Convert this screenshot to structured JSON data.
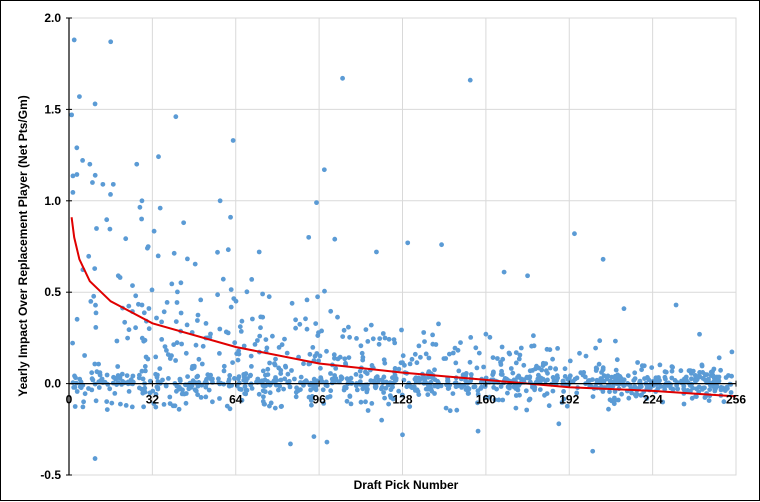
{
  "chart_data": {
    "type": "scatter",
    "title": "",
    "xlabel": "Draft Pick Number",
    "ylabel": "Yearly Impact Over Replacement Player (Net Pts/Gm)",
    "xlim": [
      0,
      256
    ],
    "ylim": [
      -0.5,
      2.0
    ],
    "xticks": [
      "32",
      "64",
      "96",
      "128",
      "160",
      "192",
      "224",
      "256"
    ],
    "xtick_values": [
      32,
      64,
      96,
      128,
      160,
      192,
      224,
      256
    ],
    "xaxis_origin_label": "0",
    "yticks": [
      "-0.5",
      "0.0",
      "0.5",
      "1.0",
      "1.5",
      "2.0"
    ],
    "ytick_values": [
      -0.5,
      0.0,
      0.5,
      1.0,
      1.5,
      2.0
    ],
    "grid": true,
    "legend": "none",
    "colors": {
      "points": "#5b9bd5",
      "trend": "#e00000",
      "grid": "#d9d9d9",
      "axis": "#000000"
    },
    "series": [
      {
        "type": "scatter",
        "points": [
          [
            1,
            1.47
          ],
          [
            2,
            1.88
          ],
          [
            4,
            1.57
          ],
          [
            3,
            1.29
          ],
          [
            8,
            1.2
          ],
          [
            9,
            1.1
          ],
          [
            10,
            1.53
          ],
          [
            13,
            1.09
          ],
          [
            17,
            1.09
          ],
          [
            16,
            1.87
          ],
          [
            26,
            1.2
          ],
          [
            41,
            1.46
          ],
          [
            63,
            1.33
          ],
          [
            98,
            1.17
          ],
          [
            105,
            1.67
          ],
          [
            154,
            1.66
          ],
          [
            95,
            0.99
          ],
          [
            58,
            1.0
          ],
          [
            28,
            1.0
          ],
          [
            35,
            0.96
          ],
          [
            44,
            0.88
          ],
          [
            62,
            0.91
          ],
          [
            73,
            0.72
          ],
          [
            92,
            0.8
          ],
          [
            102,
            0.79
          ],
          [
            118,
            0.72
          ],
          [
            130,
            0.77
          ],
          [
            143,
            0.76
          ],
          [
            167,
            0.61
          ],
          [
            176,
            0.59
          ],
          [
            194,
            0.82
          ],
          [
            205,
            0.68
          ],
          [
            213,
            0.41
          ],
          [
            233,
            0.43
          ],
          [
            242,
            0.27
          ],
          [
            99,
            -0.32
          ],
          [
            94,
            -0.29
          ],
          [
            85,
            -0.33
          ],
          [
            10,
            -0.41
          ],
          [
            128,
            -0.28
          ],
          [
            157,
            -0.26
          ],
          [
            201,
            -0.37
          ],
          [
            188,
            -0.22
          ],
          [
            120,
            -0.2
          ]
        ]
      },
      {
        "type": "line",
        "name": "",
        "trend_points": [
          [
            1,
            0.91
          ],
          [
            2,
            0.8
          ],
          [
            4,
            0.68
          ],
          [
            8,
            0.56
          ],
          [
            16,
            0.45
          ],
          [
            32,
            0.33
          ],
          [
            64,
            0.2
          ],
          [
            96,
            0.11
          ],
          [
            128,
            0.06
          ],
          [
            160,
            0.02
          ],
          [
            192,
            -0.02
          ],
          [
            224,
            -0.04
          ],
          [
            256,
            -0.07
          ]
        ]
      }
    ]
  }
}
